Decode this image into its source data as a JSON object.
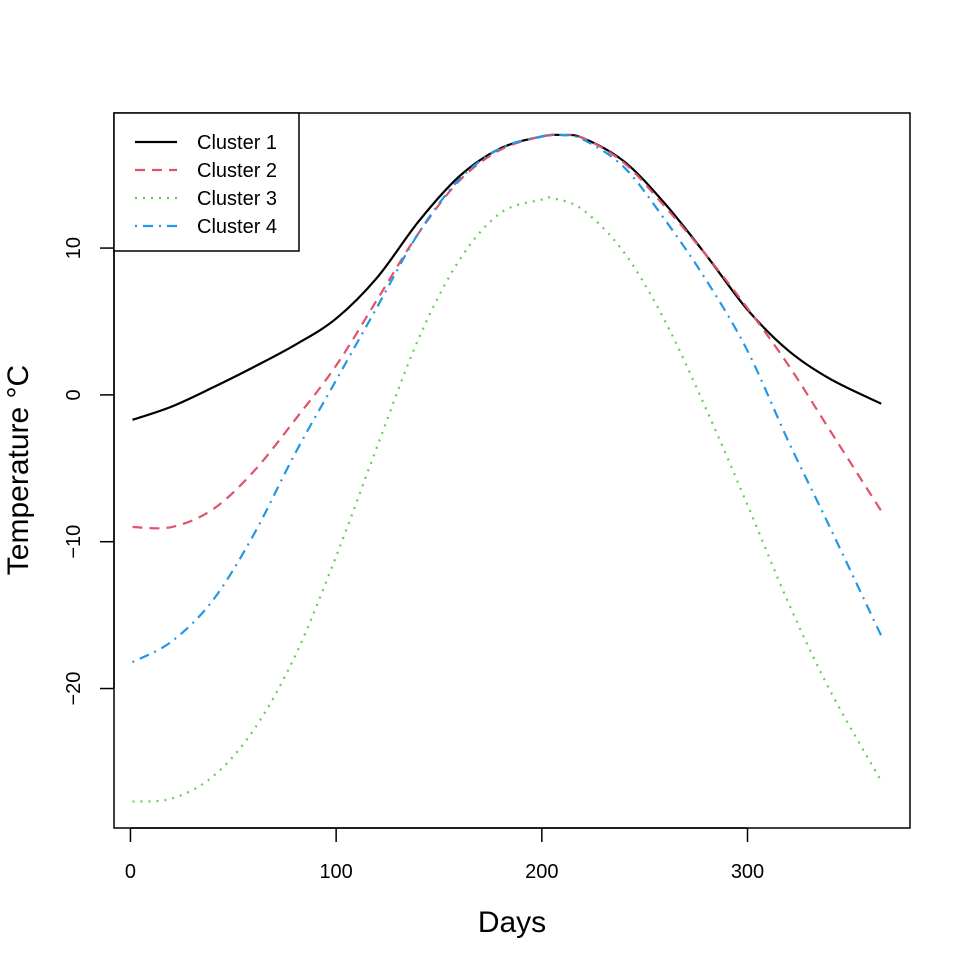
{
  "chart_data": {
    "type": "line",
    "xlabel": "Days",
    "ylabel": "Temperature °C",
    "xlim": [
      -8,
      379
    ],
    "ylim": [
      -29.5,
      19.2
    ],
    "xticks": [
      0,
      100,
      200,
      300
    ],
    "yticks": [
      -20,
      -10,
      0,
      10
    ],
    "grid": false,
    "legend_position": "top-left",
    "series": [
      {
        "name": "Cluster 1",
        "color": "#000000",
        "linestyle": "solid",
        "x": [
          1,
          20,
          40,
          60,
          80,
          100,
          120,
          140,
          160,
          180,
          200,
          210,
          220,
          240,
          260,
          280,
          300,
          320,
          340,
          365
        ],
        "y": [
          -1.7,
          -0.8,
          0.5,
          1.9,
          3.4,
          5.2,
          8.0,
          11.8,
          14.9,
          16.8,
          17.6,
          17.7,
          17.5,
          15.9,
          13.0,
          9.5,
          5.8,
          3.0,
          1.1,
          -0.6
        ]
      },
      {
        "name": "Cluster 2",
        "color": "#DF536B",
        "linestyle": "dashed",
        "x": [
          1,
          20,
          40,
          60,
          80,
          100,
          120,
          140,
          160,
          180,
          200,
          210,
          220,
          240,
          260,
          280,
          300,
          320,
          340,
          365
        ],
        "y": [
          -9.0,
          -9.0,
          -7.8,
          -5.2,
          -1.7,
          2.0,
          6.5,
          11.0,
          14.6,
          16.7,
          17.6,
          17.7,
          17.5,
          15.8,
          12.8,
          9.5,
          5.9,
          2.0,
          -2.4,
          -7.9
        ]
      },
      {
        "name": "Cluster 3",
        "color": "#61D04F",
        "linestyle": "dotted",
        "x": [
          1,
          20,
          40,
          60,
          80,
          100,
          120,
          140,
          160,
          180,
          200,
          205,
          220,
          240,
          260,
          280,
          300,
          320,
          340,
          365
        ],
        "y": [
          -27.7,
          -27.5,
          -26.0,
          -22.8,
          -17.8,
          -11.0,
          -3.5,
          3.8,
          9.2,
          12.4,
          13.3,
          13.4,
          12.6,
          9.7,
          5.0,
          -1.0,
          -7.5,
          -14.2,
          -20.1,
          -26.3
        ]
      },
      {
        "name": "Cluster 4",
        "color": "#2297E6",
        "linestyle": "dotdash",
        "x": [
          1,
          20,
          40,
          60,
          80,
          100,
          120,
          140,
          160,
          180,
          200,
          210,
          220,
          240,
          260,
          280,
          300,
          320,
          340,
          365
        ],
        "y": [
          -18.2,
          -16.8,
          -14.0,
          -9.5,
          -4.0,
          1.0,
          6.0,
          11.0,
          14.7,
          16.8,
          17.6,
          17.7,
          17.4,
          15.5,
          11.9,
          7.8,
          3.0,
          -3.2,
          -9.0,
          -16.4
        ]
      }
    ]
  }
}
